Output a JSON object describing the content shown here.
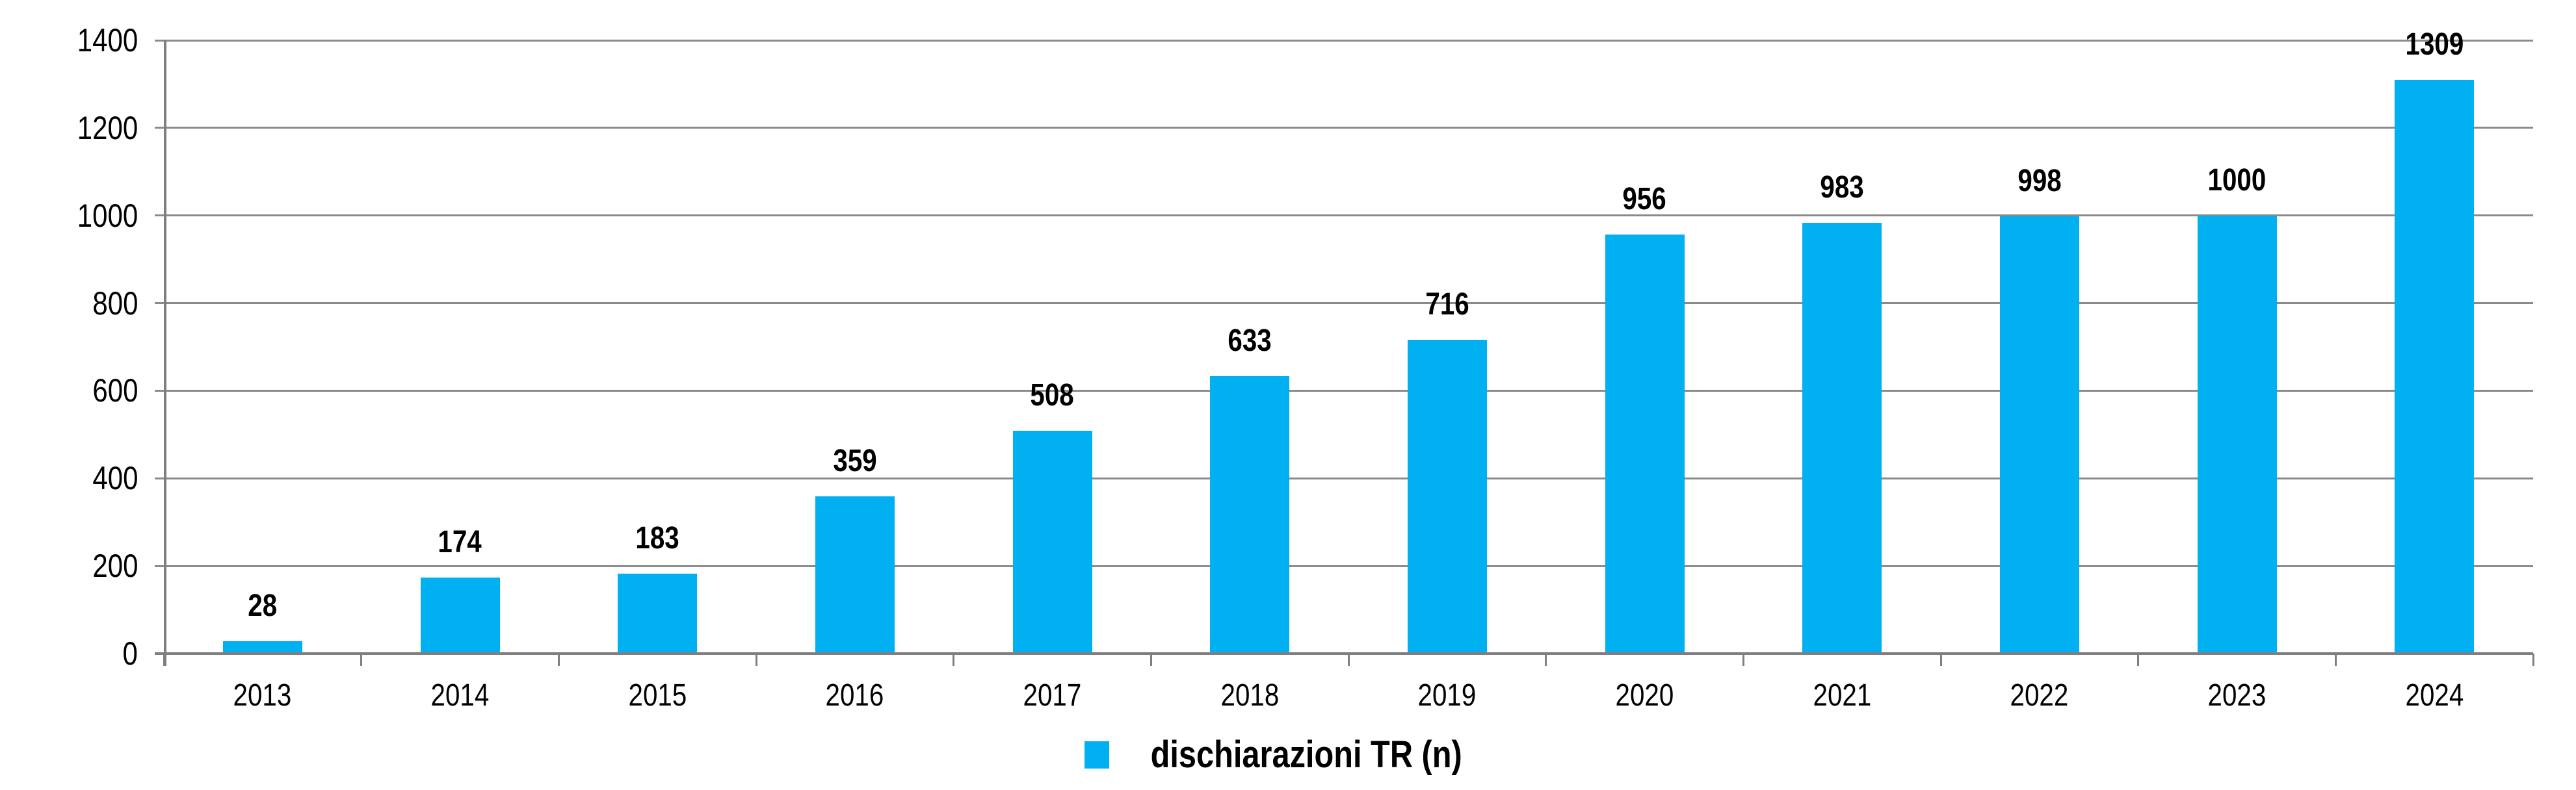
{
  "chart_data": {
    "type": "bar",
    "title": "",
    "xlabel": "",
    "ylabel": "",
    "categories": [
      "2013",
      "2014",
      "2015",
      "2016",
      "2017",
      "2018",
      "2019",
      "2020",
      "2021",
      "2022",
      "2023",
      "2024"
    ],
    "series": [
      {
        "name": "dischiarazioni TR (n)",
        "values": [
          28,
          174,
          183,
          359,
          508,
          633,
          716,
          956,
          983,
          998,
          1000,
          1309
        ]
      }
    ],
    "data_labels": [
      28,
      174,
      183,
      359,
      508,
      633,
      716,
      956,
      983,
      998,
      1000,
      1309
    ],
    "ylim": [
      0,
      1400
    ],
    "yticks": [
      0,
      200,
      400,
      600,
      800,
      1000,
      1200,
      1400
    ],
    "grid": "horizontal",
    "legend_position": "bottom-center",
    "legend_items": [
      {
        "label": "dischiarazioni TR (n)",
        "color": "#00B0F0"
      }
    ],
    "colors": {
      "bar": "#00B0F0",
      "gridline": "#8A8A8A",
      "axis": "#7F7F7F",
      "text": "#000000",
      "background": "#FFFFFF"
    }
  }
}
